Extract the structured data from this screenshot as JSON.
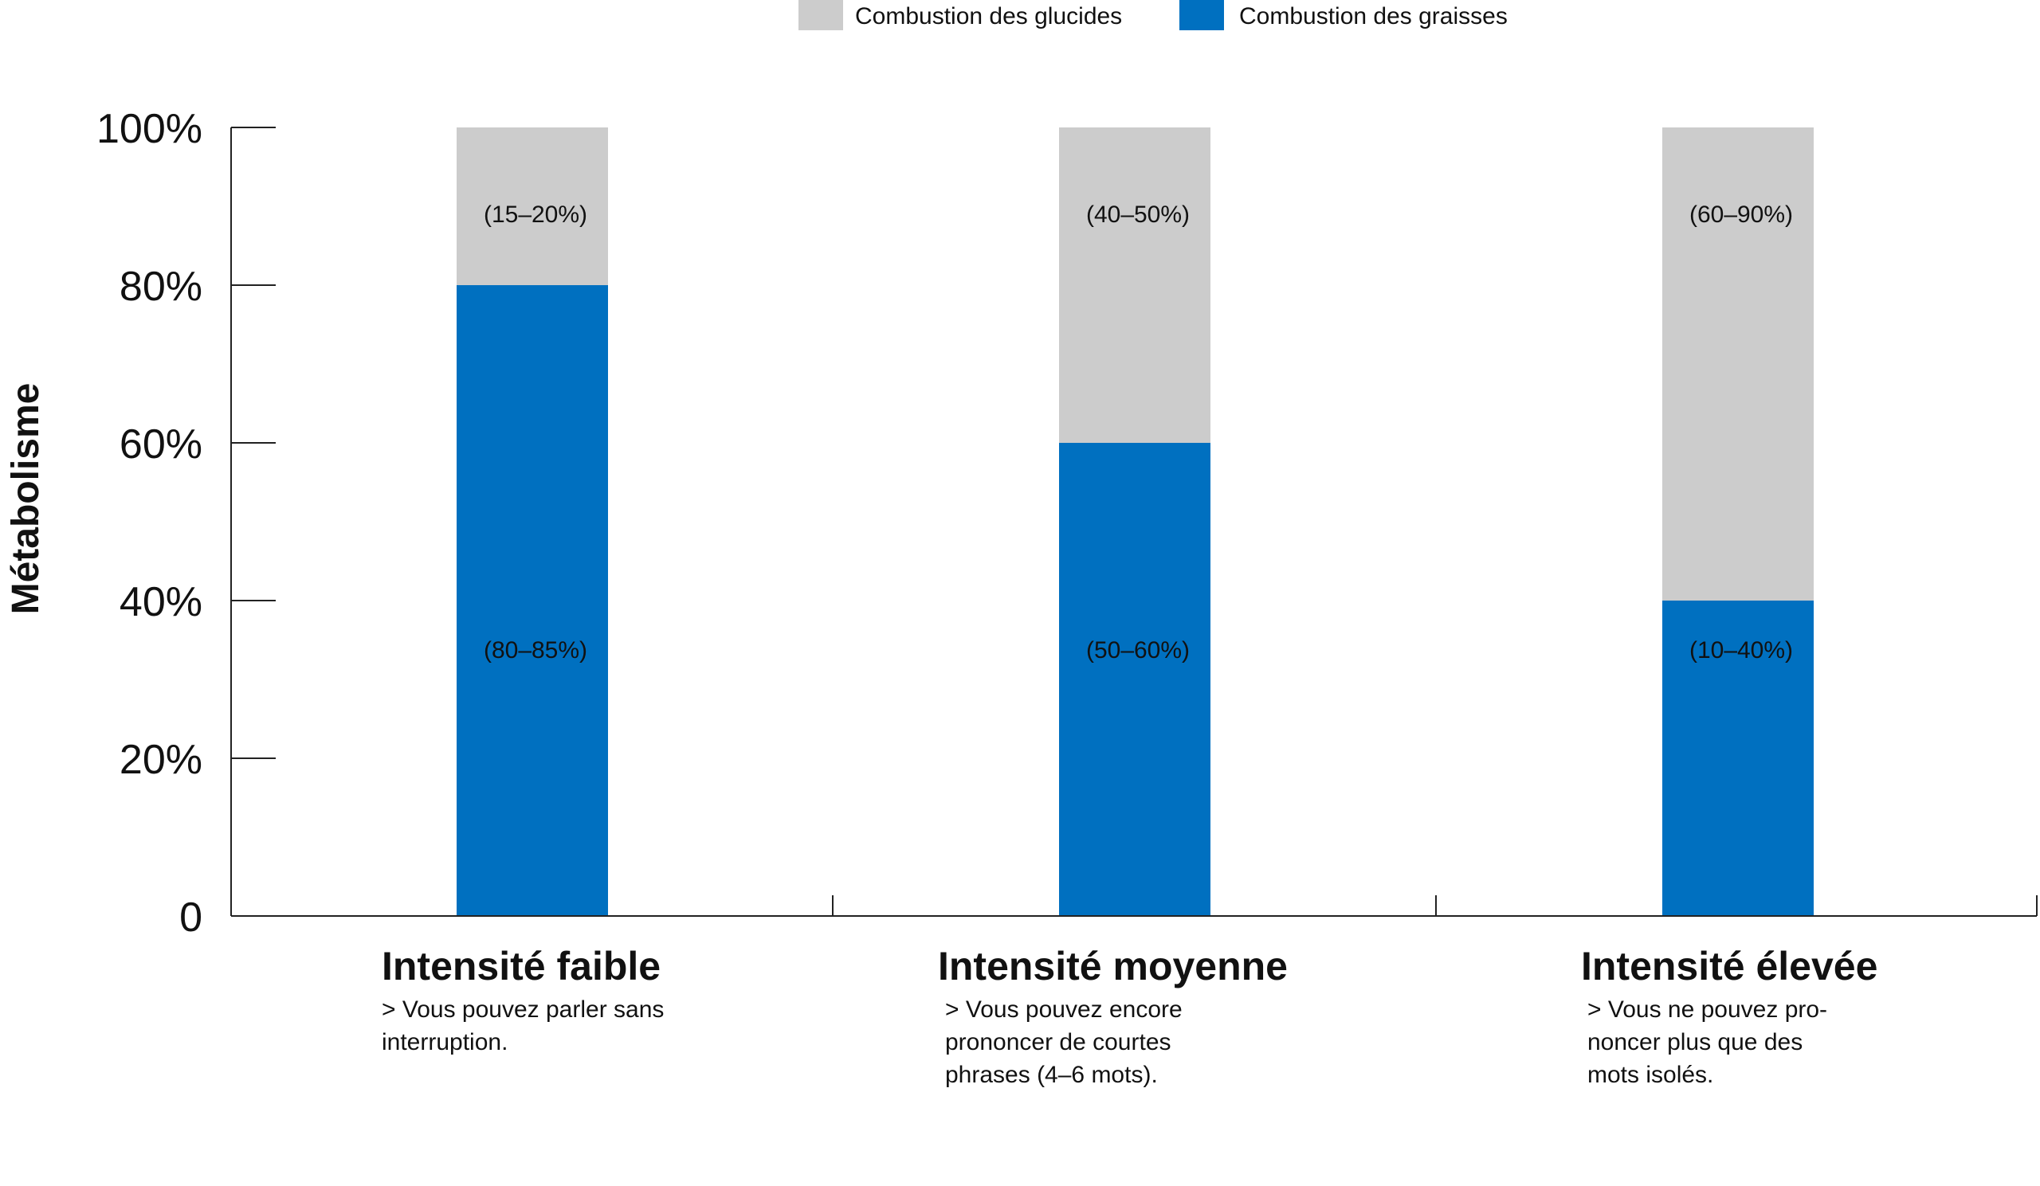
{
  "chart_data": {
    "type": "bar",
    "stacked": true,
    "ylabel": "Métabolisme",
    "yticks": [
      "0",
      "20%",
      "40%",
      "60%",
      "80%",
      "100%"
    ],
    "ylim": [
      0,
      100
    ],
    "grid": false,
    "legend_position": "top",
    "categories": [
      "Intensité faible",
      "Intensité moyenne",
      "Intensité élevée"
    ],
    "series": [
      {
        "name": "Combustion des graisses",
        "color": "#0070c0",
        "values": [
          80,
          60,
          40
        ],
        "labels": [
          "(80–85%)",
          "(50–60%)",
          "(10–40%)"
        ]
      },
      {
        "name": "Combustion des glucides",
        "color": "#cccccc",
        "values": [
          20,
          40,
          60
        ],
        "labels": [
          "(15–20%)",
          "(40–50%)",
          "(60–90%)"
        ]
      }
    ],
    "legend_order": [
      1,
      0
    ],
    "descriptions": [
      [
        "> Vous pouvez parler sans",
        "interruption."
      ],
      [
        "> Vous pouvez encore",
        "prononcer de courtes",
        "phrases (4–6 mots)."
      ],
      [
        "> Vous ne pouvez pro-",
        "noncer plus que des",
        "mots isolés."
      ]
    ]
  }
}
